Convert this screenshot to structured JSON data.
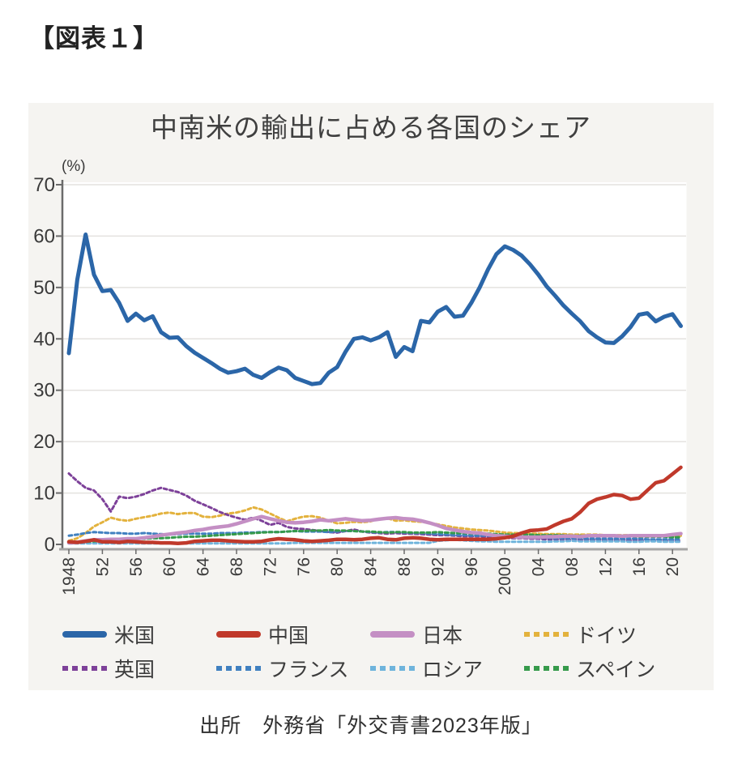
{
  "page": {
    "heading": "【図表１】",
    "source": "出所　外務省「外交青書2023年版」"
  },
  "chart_data": {
    "type": "line",
    "title": "中南米の輸出に占める各国のシェア",
    "unit_label": "(%)",
    "ylabel": "%",
    "ylim": [
      0,
      70
    ],
    "yticks": [
      0,
      10,
      20,
      30,
      40,
      50,
      60,
      70
    ],
    "grid": true,
    "legend_position": "bottom",
    "x_start_year": 1948,
    "x_end_year": 2021,
    "xtick_years": [
      1948,
      1952,
      1956,
      1960,
      1964,
      1968,
      1972,
      1976,
      1980,
      1984,
      1988,
      1992,
      1996,
      2000,
      2004,
      2008,
      2012,
      2016,
      2020
    ],
    "xtick_labels": [
      "1948",
      "52",
      "56",
      "60",
      "64",
      "68",
      "72",
      "76",
      "80",
      "84",
      "88",
      "92",
      "96",
      "2000",
      "04",
      "08",
      "12",
      "16",
      "20"
    ],
    "colors": {
      "grid": "#e4e2df",
      "y_axis": "#6b6b6b",
      "x_axis": "#a6a6a6",
      "tick_text": "#3a3a3a",
      "plot_bg": "#ffffff",
      "card_bg": "#f5f4f1"
    },
    "series": [
      {
        "name": "米国",
        "color": "#2b66a8",
        "dash": null,
        "width": 5,
        "values": [
          37.2,
          51.5,
          60.3,
          52.5,
          49.3,
          49.5,
          47.0,
          43.5,
          44.9,
          43.6,
          44.4,
          41.3,
          40.2,
          40.3,
          38.6,
          37.3,
          36.3,
          35.3,
          34.2,
          33.4,
          33.7,
          34.2,
          33.0,
          32.4,
          33.5,
          34.4,
          33.9,
          32.4,
          31.8,
          31.2,
          31.4,
          33.4,
          34.5,
          37.5,
          40.0,
          40.3,
          39.7,
          40.3,
          41.3,
          36.5,
          38.4,
          37.6,
          43.5,
          43.2,
          45.3,
          46.2,
          44.3,
          44.5,
          47.0,
          50.0,
          53.5,
          56.5,
          58.0,
          57.3,
          56.2,
          54.5,
          52.5,
          50.2,
          48.4,
          46.5,
          44.9,
          43.4,
          41.5,
          40.3,
          39.3,
          39.2,
          40.5,
          42.3,
          44.7,
          45.0,
          43.4,
          44.3,
          44.8,
          42.5
        ]
      },
      {
        "name": "中国",
        "color": "#c0392b",
        "dash": null,
        "width": 4.5,
        "values": [
          0.5,
          0.4,
          0.6,
          0.9,
          0.5,
          0.5,
          0.4,
          0.6,
          0.5,
          0.4,
          0.4,
          0.3,
          0.3,
          0.2,
          0.3,
          0.6,
          0.7,
          0.8,
          0.8,
          0.7,
          0.6,
          0.5,
          0.5,
          0.6,
          0.9,
          1.1,
          1.0,
          0.9,
          0.7,
          0.6,
          0.7,
          0.8,
          1.0,
          1.0,
          0.9,
          1.0,
          1.2,
          1.3,
          1.0,
          0.9,
          1.2,
          1.3,
          1.2,
          1.0,
          0.9,
          1.0,
          1.0,
          1.0,
          1.0,
          1.0,
          1.0,
          1.1,
          1.3,
          1.6,
          2.2,
          2.7,
          2.8,
          3.0,
          3.8,
          4.5,
          5.0,
          6.3,
          8.0,
          8.8,
          9.2,
          9.7,
          9.5,
          8.8,
          9.0,
          10.5,
          12.0,
          12.4,
          13.7,
          15.0
        ]
      },
      {
        "name": "日本",
        "color": "#c48fc4",
        "dash": null,
        "width": 4.5,
        "values": [
          0.3,
          0.4,
          0.7,
          0.9,
          0.9,
          1.0,
          1.0,
          1.1,
          1.1,
          1.3,
          1.5,
          1.8,
          2.0,
          2.2,
          2.4,
          2.7,
          2.9,
          3.2,
          3.4,
          3.6,
          4.0,
          4.5,
          5.0,
          5.4,
          5.0,
          4.6,
          4.3,
          4.2,
          4.3,
          4.5,
          4.8,
          4.6,
          4.8,
          5.0,
          4.8,
          4.6,
          4.7,
          4.9,
          5.1,
          5.2,
          5.0,
          4.9,
          4.6,
          4.2,
          3.7,
          3.1,
          2.8,
          2.5,
          2.3,
          2.2,
          1.9,
          1.7,
          1.6,
          1.5,
          1.4,
          1.4,
          1.4,
          1.5,
          1.5,
          1.6,
          1.6,
          1.5,
          1.7,
          1.7,
          1.7,
          1.7,
          1.6,
          1.7,
          1.7,
          1.7,
          1.7,
          1.7,
          1.9,
          2.1
        ]
      },
      {
        "name": "ドイツ",
        "color": "#e3b23d",
        "dash": "4 3.5",
        "width": 3,
        "values": [
          0.7,
          1.2,
          2.2,
          3.5,
          4.3,
          5.2,
          4.8,
          4.6,
          5.0,
          5.3,
          5.6,
          6.0,
          6.2,
          5.9,
          6.1,
          6.1,
          5.4,
          5.3,
          5.6,
          6.0,
          6.2,
          6.6,
          7.2,
          6.8,
          6.0,
          5.2,
          4.5,
          5.0,
          5.4,
          5.5,
          5.2,
          4.6,
          4.1,
          4.2,
          4.4,
          4.3,
          4.5,
          5.0,
          5.1,
          4.6,
          4.7,
          4.5,
          4.4,
          4.2,
          3.9,
          3.6,
          3.3,
          3.1,
          2.9,
          2.8,
          2.7,
          2.5,
          2.3,
          2.2,
          2.2,
          2.1,
          2.1,
          2.0,
          2.0,
          2.0,
          1.9,
          1.9,
          1.9,
          1.9,
          1.8,
          1.8,
          1.8,
          1.8,
          1.8,
          1.8,
          1.7,
          1.7,
          1.7,
          1.7
        ]
      },
      {
        "name": "英国",
        "color": "#7d4199",
        "dash": "4 3.5",
        "width": 3,
        "values": [
          13.8,
          12.3,
          11.0,
          10.5,
          8.8,
          6.4,
          9.3,
          9.0,
          9.3,
          9.8,
          10.5,
          11.0,
          10.6,
          10.2,
          9.5,
          8.5,
          7.8,
          7.1,
          6.3,
          5.7,
          5.2,
          4.8,
          5.2,
          4.6,
          3.8,
          4.2,
          3.4,
          3.1,
          3.0,
          2.8,
          2.6,
          2.4,
          2.3,
          2.6,
          2.9,
          2.5,
          2.3,
          2.2,
          2.1,
          2.2,
          2.1,
          2.1,
          2.0,
          1.9,
          1.8,
          1.8,
          1.7,
          1.6,
          1.6,
          1.6,
          1.5,
          1.4,
          1.3,
          1.2,
          1.2,
          1.1,
          1.1,
          1.0,
          1.0,
          1.0,
          0.9,
          0.9,
          0.9,
          0.9,
          0.8,
          0.8,
          0.8,
          0.8,
          0.8,
          0.8,
          0.8,
          0.8,
          0.7,
          0.7
        ]
      },
      {
        "name": "フランス",
        "color": "#4080c0",
        "dash": "4 3.5",
        "width": 3,
        "values": [
          1.7,
          1.9,
          2.2,
          2.4,
          2.3,
          2.2,
          2.2,
          2.1,
          2.1,
          2.2,
          2.1,
          2.0,
          1.9,
          2.0,
          2.1,
          2.1,
          2.1,
          2.1,
          2.2,
          2.2,
          2.2,
          2.3,
          2.3,
          2.4,
          2.4,
          2.4,
          2.5,
          2.6,
          2.5,
          2.5,
          2.5,
          2.4,
          2.5,
          2.6,
          2.6,
          2.5,
          2.4,
          2.3,
          2.4,
          2.4,
          2.3,
          2.2,
          2.2,
          2.1,
          2.0,
          1.9,
          1.8,
          1.8,
          1.7,
          1.7,
          1.7,
          1.6,
          1.5,
          1.5,
          1.4,
          1.4,
          1.3,
          1.3,
          1.2,
          1.2,
          1.2,
          1.2,
          1.1,
          1.1,
          1.1,
          1.1,
          1.1,
          1.1,
          1.1,
          1.0,
          1.0,
          1.0,
          1.0,
          1.0
        ]
      },
      {
        "name": "ロシア",
        "color": "#6fb4dc",
        "dash": "4 3.5",
        "width": 3,
        "values": [
          0.2,
          0.2,
          0.2,
          0.2,
          0.2,
          0.2,
          0.2,
          0.2,
          0.2,
          0.2,
          0.2,
          0.2,
          0.2,
          0.2,
          0.2,
          0.2,
          0.2,
          0.2,
          0.2,
          0.2,
          0.2,
          0.2,
          0.2,
          0.2,
          0.2,
          0.2,
          0.2,
          0.3,
          0.3,
          0.3,
          0.3,
          0.3,
          0.3,
          0.3,
          0.3,
          0.3,
          0.3,
          0.3,
          0.3,
          0.3,
          0.3,
          0.3,
          0.3,
          0.3,
          0.7,
          0.8,
          0.9,
          0.8,
          0.7,
          0.6,
          0.6,
          0.5,
          0.5,
          0.5,
          0.5,
          0.5,
          0.5,
          0.5,
          0.6,
          0.6,
          0.7,
          0.6,
          0.6,
          0.6,
          0.6,
          0.6,
          0.6,
          0.5,
          0.5,
          0.6,
          0.6,
          0.5,
          0.5,
          0.5
        ]
      },
      {
        "name": "スペイン",
        "color": "#369a4b",
        "dash": "4 3.5",
        "width": 3,
        "values": [
          0.5,
          0.5,
          0.5,
          0.6,
          0.7,
          0.8,
          0.9,
          1.0,
          1.1,
          1.1,
          1.2,
          1.2,
          1.3,
          1.4,
          1.5,
          1.5,
          1.6,
          1.7,
          1.8,
          1.9,
          2.0,
          2.1,
          2.2,
          2.3,
          2.4,
          2.4,
          2.5,
          2.6,
          2.6,
          2.7,
          2.7,
          2.8,
          2.7,
          2.7,
          2.6,
          2.5,
          2.5,
          2.4,
          2.3,
          2.4,
          2.4,
          2.3,
          2.3,
          2.3,
          2.4,
          2.3,
          2.2,
          2.2,
          2.1,
          2.1,
          2.1,
          2.0,
          1.9,
          1.9,
          1.9,
          1.9,
          1.8,
          1.8,
          1.8,
          1.8,
          1.7,
          1.7,
          1.6,
          1.6,
          1.6,
          1.6,
          1.6,
          1.6,
          1.5,
          1.5,
          1.5,
          1.5,
          1.4,
          1.4
        ]
      }
    ]
  },
  "legend": {
    "rows": [
      [
        "米国",
        "中国",
        "日本",
        "ドイツ"
      ],
      [
        "英国",
        "フランス",
        "ロシア",
        "スペイン"
      ]
    ]
  }
}
